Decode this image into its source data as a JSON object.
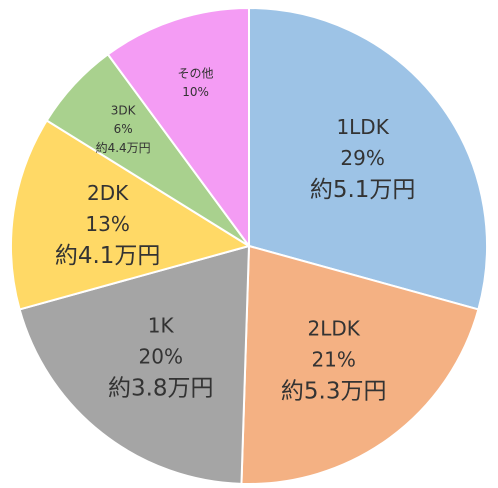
{
  "chart_data": {
    "type": "pie",
    "categories": [
      "1LDK",
      "2LDK",
      "1K",
      "2DK",
      "3DK",
      "その他"
    ],
    "values": [
      29,
      21,
      20,
      13,
      6,
      10
    ],
    "value_labels": [
      "29%",
      "21%",
      "20%",
      "13%",
      "6%",
      "10%"
    ],
    "rent_labels": [
      "約5.1万円",
      "約5.3万円",
      "約3.8万円",
      "約4.1万円",
      "約4.4万円",
      null
    ],
    "colors": [
      "#9dc3e6",
      "#f4b183",
      "#a5a5a5",
      "#ffd966",
      "#a9d18e",
      "#f49cf4"
    ]
  }
}
